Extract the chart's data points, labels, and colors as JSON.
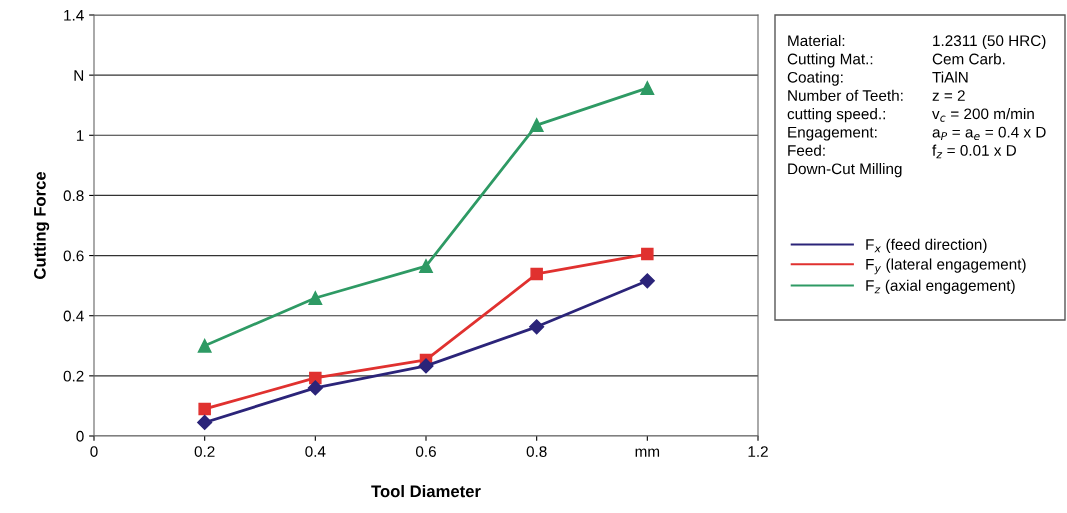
{
  "chart_data": {
    "type": "line",
    "xlabel": "Tool Diameter",
    "ylabel": "Cutting Force",
    "x": [
      0.2,
      0.4,
      0.6,
      0.8,
      1.0
    ],
    "xlim": [
      0,
      1.2
    ],
    "xticks": [
      0,
      0.2,
      0.4,
      0.6,
      0.8,
      {
        "value": 1.0,
        "label": "mm"
      },
      1.2
    ],
    "ylim": [
      0,
      1.4
    ],
    "yticks": [
      0,
      0.2,
      0.4,
      0.6,
      0.8,
      1,
      {
        "value": 1.2,
        "label": "N"
      },
      1.4
    ],
    "grid": "y",
    "legend": "right",
    "line_style": "solid",
    "series": [
      {
        "name": "F$_{x}$ (feed direction)",
        "color": "#2b2479",
        "marker": "diamond",
        "values": [
          0.045,
          0.16,
          0.233,
          0.363,
          0.516
        ]
      },
      {
        "name": "F$_{y}$ (lateral engagement)",
        "color": "#e0312f",
        "marker": "square",
        "values": [
          0.09,
          0.193,
          0.253,
          0.539,
          0.605
        ]
      },
      {
        "name": "F$_{z}$ (axial engagement)",
        "color": "#2e9a64",
        "marker": "triangle",
        "values": [
          0.3,
          0.459,
          0.565,
          1.034,
          1.157
        ]
      }
    ],
    "annotations": [
      "Material:",
      "1.2311 (50 HRC)",
      "Cutting Mat.:",
      "Cem Carb.",
      "Coating:",
      "TiAlN",
      "Number of Teeth:",
      "z = 2",
      "cutting speed.:",
      "v$_{c}$ = 200 m/min",
      "Engagement:",
      "a$_{P}$ = a$_{e}$ = 0.4 x D",
      "Feed:",
      "f$_{z}$ = 0.01 x D",
      "Down-Cut Milling"
    ]
  }
}
